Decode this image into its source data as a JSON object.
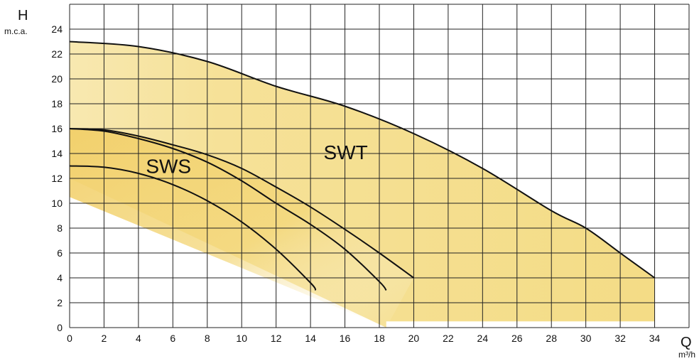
{
  "chart_data": {
    "type": "line",
    "title": "",
    "xlabel": "Q",
    "xunit": "m³/h",
    "ylabel": "H",
    "yunit": "m.c.a.",
    "xlim": [
      0,
      36
    ],
    "ylim": [
      0,
      26
    ],
    "x_ticks": [
      0,
      2,
      4,
      6,
      8,
      10,
      12,
      14,
      16,
      18,
      20,
      22,
      24,
      26,
      28,
      30,
      32,
      34
    ],
    "y_ticks": [
      0,
      2,
      4,
      6,
      8,
      10,
      12,
      14,
      16,
      18,
      20,
      22,
      24
    ],
    "grid": true,
    "region_labels": [
      {
        "text": "SWT",
        "x": 16,
        "y": 14
      },
      {
        "text": "SWS",
        "x": 6,
        "y": 13
      }
    ],
    "series": [
      {
        "x": [
          0,
          4,
          8,
          12,
          16,
          20,
          24,
          28,
          30,
          32,
          34
        ],
        "y": [
          23,
          22.6,
          21.4,
          19.4,
          17.8,
          15.6,
          12.8,
          9.4,
          8,
          6,
          4
        ]
      },
      {
        "x": [
          0,
          2,
          4,
          6,
          8,
          10,
          12,
          14,
          16,
          18,
          20
        ],
        "y": [
          16,
          15.9,
          15.4,
          14.7,
          13.9,
          12.8,
          11.3,
          9.7,
          7.9,
          6,
          4
        ]
      },
      {
        "x": [
          0,
          2,
          4,
          6,
          8,
          10,
          12,
          14,
          16,
          18,
          18.4
        ],
        "y": [
          16,
          15.8,
          15.2,
          14.4,
          13.3,
          11.8,
          10,
          8.3,
          6.3,
          3.7,
          3
        ]
      },
      {
        "x": [
          0,
          2,
          4,
          6,
          8,
          10,
          12,
          14,
          14.3
        ],
        "y": [
          13,
          12.9,
          12.4,
          11.5,
          10.2,
          8.5,
          6.3,
          3.6,
          3
        ]
      }
    ],
    "areas": [
      {
        "upper_x": [
          0,
          4,
          8,
          12,
          16,
          20,
          24,
          28,
          30,
          32,
          34
        ],
        "upper_y": [
          23,
          22.6,
          21.4,
          19.4,
          17.8,
          15.6,
          12.8,
          9.4,
          8,
          6,
          4
        ],
        "lower_y": 0.5,
        "color": "#f5de86"
      },
      {
        "upper_x": [
          0,
          2,
          4,
          6,
          8,
          10,
          12,
          14,
          16,
          18,
          20
        ],
        "upper_y": [
          16,
          15.9,
          15.4,
          14.7,
          13.9,
          12.8,
          11.3,
          9.7,
          7.9,
          6,
          4
        ],
        "color": "#f1d06a"
      }
    ],
    "colors": {
      "curve": "#111111",
      "grid": "#222222",
      "fill_main": "#f4dc86",
      "fill_inner": "#f2cf69"
    }
  }
}
